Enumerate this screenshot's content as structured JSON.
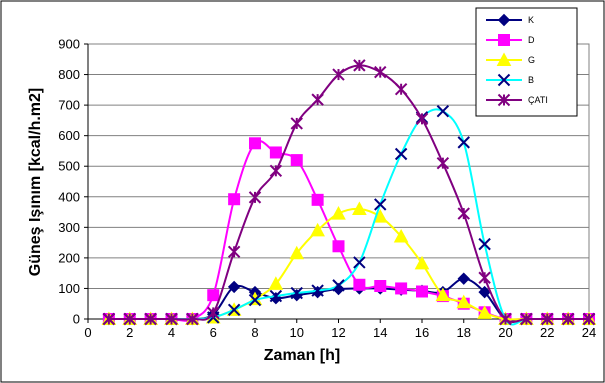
{
  "chart_data": {
    "type": "line",
    "title": "",
    "xlabel": "Zaman [h]",
    "ylabel": "Güneş Işınım [kcal/h.m2]",
    "xlim": [
      0,
      24
    ],
    "ylim": [
      0,
      900
    ],
    "xticks": [
      "0",
      "2",
      "4",
      "6",
      "8",
      "10",
      "12",
      "14",
      "16",
      "18",
      "20",
      "22",
      "24"
    ],
    "yticks": [
      "0",
      "100",
      "200",
      "300",
      "400",
      "500",
      "600",
      "700",
      "800",
      "900"
    ],
    "grid": "horizontal",
    "legend_position": "top-right",
    "x": [
      1,
      2,
      3,
      4,
      5,
      6,
      7,
      8,
      9,
      10,
      11,
      12,
      13,
      14,
      15,
      16,
      17,
      18,
      19,
      20,
      21,
      22,
      23,
      24
    ],
    "series": [
      {
        "name": "K",
        "color": "#000080",
        "marker": "diamond",
        "values": [
          0,
          0,
          0,
          0,
          0,
          15,
          105,
          88,
          68,
          78,
          88,
          98,
          100,
          100,
          96,
          92,
          88,
          132,
          88,
          0,
          0,
          0,
          0,
          0
        ]
      },
      {
        "name": "D",
        "color": "#FF00FF",
        "marker": "square",
        "values": [
          0,
          0,
          0,
          0,
          0,
          78,
          392,
          575,
          545,
          520,
          390,
          238,
          112,
          108,
          100,
          90,
          75,
          50,
          22,
          0,
          0,
          0,
          0,
          0
        ]
      },
      {
        "name": "G",
        "color": "#FFFF00",
        "marker": "triangle",
        "values": [
          0,
          0,
          0,
          0,
          0,
          5,
          30,
          65,
          115,
          215,
          290,
          345,
          360,
          335,
          270,
          182,
          78,
          55,
          20,
          0,
          0,
          0,
          0,
          0
        ]
      },
      {
        "name": "B",
        "color": "#00FFFF",
        "marker": "x",
        "values": [
          0,
          0,
          0,
          0,
          0,
          5,
          30,
          62,
          75,
          85,
          93,
          110,
          185,
          375,
          540,
          660,
          680,
          578,
          245,
          0,
          0,
          0,
          0,
          0
        ]
      },
      {
        "name": "ÇATI",
        "color": "#800080",
        "marker": "star",
        "values": [
          0,
          0,
          0,
          0,
          0,
          20,
          220,
          398,
          485,
          640,
          718,
          800,
          830,
          808,
          752,
          655,
          510,
          345,
          135,
          0,
          0,
          0,
          0,
          0
        ]
      }
    ]
  }
}
